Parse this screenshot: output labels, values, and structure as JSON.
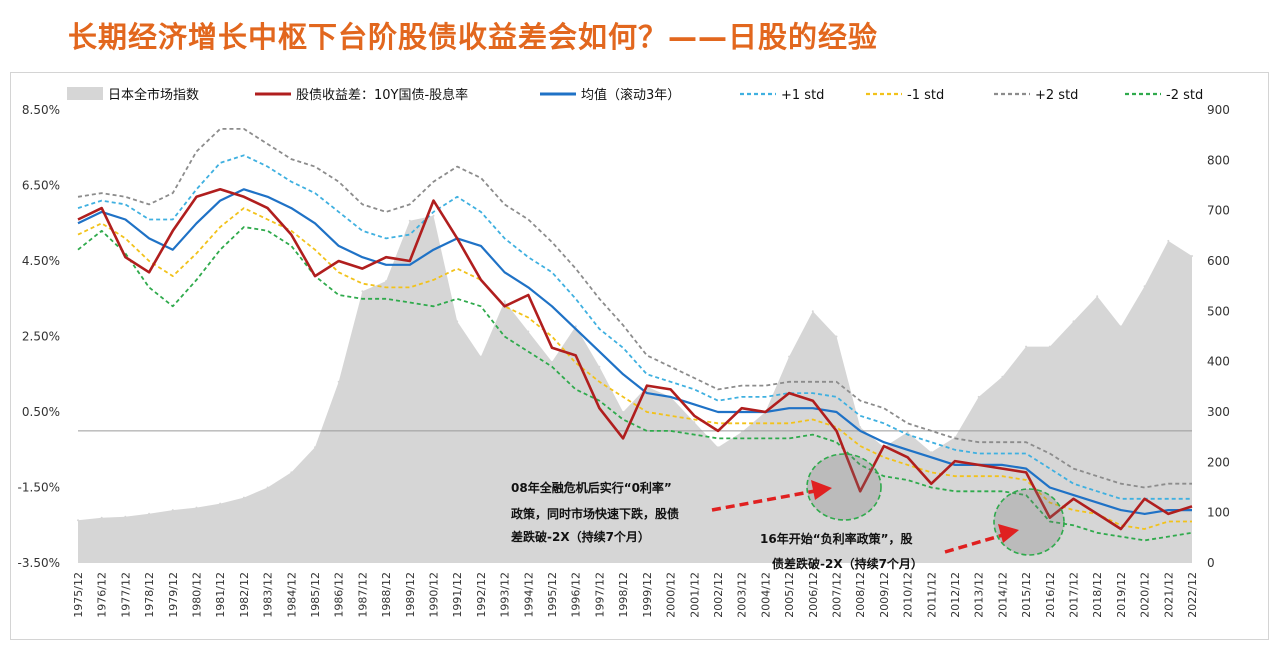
{
  "page_title": "长期经济增长中枢下台阶股债收益差会如何？——日股的经验",
  "chart_data": {
    "type": "line",
    "title": "长期经济增长中枢下台阶股债收益差会如何？——日股的经验",
    "legend": [
      {
        "name": "日本全市场指数",
        "style": "area",
        "color": "#D6D6D6"
      },
      {
        "name": "股债收益差：10Y国债-股息率",
        "style": "solid",
        "color": "#B01E1E"
      },
      {
        "name": "均值（滚动3年）",
        "style": "solid",
        "color": "#1F72C6"
      },
      {
        "name": "+1 std",
        "style": "dashed",
        "color": "#3FB0E0"
      },
      {
        "name": "-1 std",
        "style": "dashed",
        "color": "#F2C21A"
      },
      {
        "name": "+2 std",
        "style": "dashed",
        "color": "#8C8C8C"
      },
      {
        "name": "-2 std",
        "style": "dashed",
        "color": "#2FAA4C"
      }
    ],
    "y_left": {
      "ticks": [
        "8.50%",
        "6.50%",
        "4.50%",
        "2.50%",
        "0.50%",
        "-1.50%",
        "-3.50%"
      ],
      "min": -3.5,
      "max": 8.5
    },
    "y_right": {
      "ticks": [
        "900",
        "800",
        "700",
        "600",
        "500",
        "400",
        "300",
        "200",
        "100",
        "0"
      ],
      "min": 0,
      "max": 900
    },
    "x_labels": [
      "1975/12",
      "1976/12",
      "1977/12",
      "1978/12",
      "1979/12",
      "1980/12",
      "1981/12",
      "1982/12",
      "1983/12",
      "1984/12",
      "1985/12",
      "1986/12",
      "1987/12",
      "1988/12",
      "1989/12",
      "1990/12",
      "1991/12",
      "1992/12",
      "1993/12",
      "1994/12",
      "1995/12",
      "1996/12",
      "1997/12",
      "1998/12",
      "1999/12",
      "2000/12",
      "2001/12",
      "2002/12",
      "2003/12",
      "2004/12",
      "2005/12",
      "2006/12",
      "2007/12",
      "2008/12",
      "2009/12",
      "2010/12",
      "2011/12",
      "2012/12",
      "2013/12",
      "2014/12",
      "2015/12",
      "2016/12",
      "2017/12",
      "2018/12",
      "2019/12",
      "2020/12",
      "2021/12",
      "2022/12"
    ],
    "series": [
      {
        "name": "股债收益差：10Y国债-股息率",
        "axis": "left",
        "values": [
          5.6,
          5.9,
          4.6,
          4.2,
          5.3,
          6.2,
          6.4,
          6.2,
          5.9,
          5.2,
          4.1,
          4.5,
          4.3,
          4.6,
          4.5,
          6.1,
          5.1,
          4.0,
          3.3,
          3.6,
          2.2,
          2.0,
          0.6,
          -0.2,
          1.2,
          1.1,
          0.4,
          0.0,
          0.6,
          0.5,
          1.0,
          0.8,
          0.0,
          -1.6,
          -0.4,
          -0.7,
          -1.4,
          -0.8,
          -0.9,
          -1.0,
          -1.1,
          -2.3,
          -1.8,
          -2.2,
          -2.6,
          -1.8,
          -2.2,
          -2.0
        ]
      },
      {
        "name": "均值（滚动3年）",
        "axis": "left",
        "values": [
          5.5,
          5.8,
          5.6,
          5.1,
          4.8,
          5.5,
          6.1,
          6.4,
          6.2,
          5.9,
          5.5,
          4.9,
          4.6,
          4.4,
          4.4,
          4.8,
          5.1,
          4.9,
          4.2,
          3.8,
          3.3,
          2.7,
          2.1,
          1.5,
          1.0,
          0.9,
          0.7,
          0.5,
          0.5,
          0.5,
          0.6,
          0.6,
          0.5,
          0.0,
          -0.3,
          -0.5,
          -0.7,
          -0.9,
          -0.9,
          -0.9,
          -1.0,
          -1.5,
          -1.7,
          -1.9,
          -2.1,
          -2.2,
          -2.1,
          -2.1
        ]
      },
      {
        "name": "+1 std",
        "axis": "left",
        "values": [
          5.9,
          6.1,
          6.0,
          5.6,
          5.6,
          6.4,
          7.1,
          7.3,
          7.0,
          6.6,
          6.3,
          5.8,
          5.3,
          5.1,
          5.2,
          5.8,
          6.2,
          5.8,
          5.1,
          4.6,
          4.2,
          3.5,
          2.7,
          2.2,
          1.5,
          1.3,
          1.1,
          0.8,
          0.9,
          0.9,
          1.0,
          1.0,
          0.9,
          0.4,
          0.2,
          -0.1,
          -0.3,
          -0.5,
          -0.6,
          -0.6,
          -0.6,
          -1.0,
          -1.4,
          -1.6,
          -1.8,
          -1.8,
          -1.8,
          -1.8
        ]
      },
      {
        "name": "-1 std",
        "axis": "left",
        "values": [
          5.2,
          5.5,
          5.1,
          4.5,
          4.1,
          4.7,
          5.4,
          5.9,
          5.6,
          5.3,
          4.8,
          4.2,
          3.9,
          3.8,
          3.8,
          4.0,
          4.3,
          4.0,
          3.3,
          3.0,
          2.5,
          1.8,
          1.3,
          0.9,
          0.5,
          0.4,
          0.3,
          0.2,
          0.2,
          0.2,
          0.2,
          0.3,
          0.1,
          -0.4,
          -0.7,
          -0.9,
          -1.1,
          -1.2,
          -1.2,
          -1.2,
          -1.3,
          -1.9,
          -2.1,
          -2.2,
          -2.5,
          -2.6,
          -2.4,
          -2.4
        ]
      },
      {
        "name": "+2 std",
        "axis": "left",
        "values": [
          6.2,
          6.3,
          6.2,
          6.0,
          6.3,
          7.4,
          8.0,
          8.0,
          7.6,
          7.2,
          7.0,
          6.6,
          6.0,
          5.8,
          6.0,
          6.6,
          7.0,
          6.7,
          6.0,
          5.6,
          5.0,
          4.3,
          3.5,
          2.8,
          2.0,
          1.7,
          1.4,
          1.1,
          1.2,
          1.2,
          1.3,
          1.3,
          1.3,
          0.8,
          0.6,
          0.2,
          0.0,
          -0.2,
          -0.3,
          -0.3,
          -0.3,
          -0.6,
          -1.0,
          -1.2,
          -1.4,
          -1.5,
          -1.4,
          -1.4
        ]
      },
      {
        "name": "-2 std",
        "axis": "left",
        "values": [
          4.8,
          5.3,
          4.7,
          3.8,
          3.3,
          4.0,
          4.8,
          5.4,
          5.3,
          4.9,
          4.1,
          3.6,
          3.5,
          3.5,
          3.4,
          3.3,
          3.5,
          3.3,
          2.5,
          2.1,
          1.7,
          1.1,
          0.8,
          0.3,
          0.0,
          0.0,
          -0.1,
          -0.2,
          -0.2,
          -0.2,
          -0.2,
          -0.1,
          -0.3,
          -0.9,
          -1.2,
          -1.3,
          -1.5,
          -1.6,
          -1.6,
          -1.6,
          -1.7,
          -2.4,
          -2.5,
          -2.7,
          -2.8,
          -2.9,
          -2.8,
          -2.7
        ]
      },
      {
        "name": "日本全市场指数",
        "axis": "right",
        "values": [
          85,
          90,
          92,
          98,
          105,
          110,
          118,
          130,
          150,
          180,
          230,
          360,
          540,
          560,
          680,
          690,
          480,
          410,
          520,
          460,
          400,
          470,
          390,
          300,
          350,
          330,
          280,
          230,
          260,
          300,
          410,
          500,
          450,
          270,
          230,
          260,
          220,
          250,
          330,
          370,
          430,
          430,
          480,
          530,
          470,
          550,
          640,
          610
        ]
      }
    ],
    "annotations": [
      {
        "text_lines": [
          "08年全融危机后实行“0利率”",
          "政策，同时市场快速下跌，股债",
          "差跌破-2X（持续7个月）"
        ]
      },
      {
        "text_lines": [
          "16年开始“负利率政策”，股",
          "债差跌破-2X（持续7个月）"
        ]
      }
    ]
  }
}
